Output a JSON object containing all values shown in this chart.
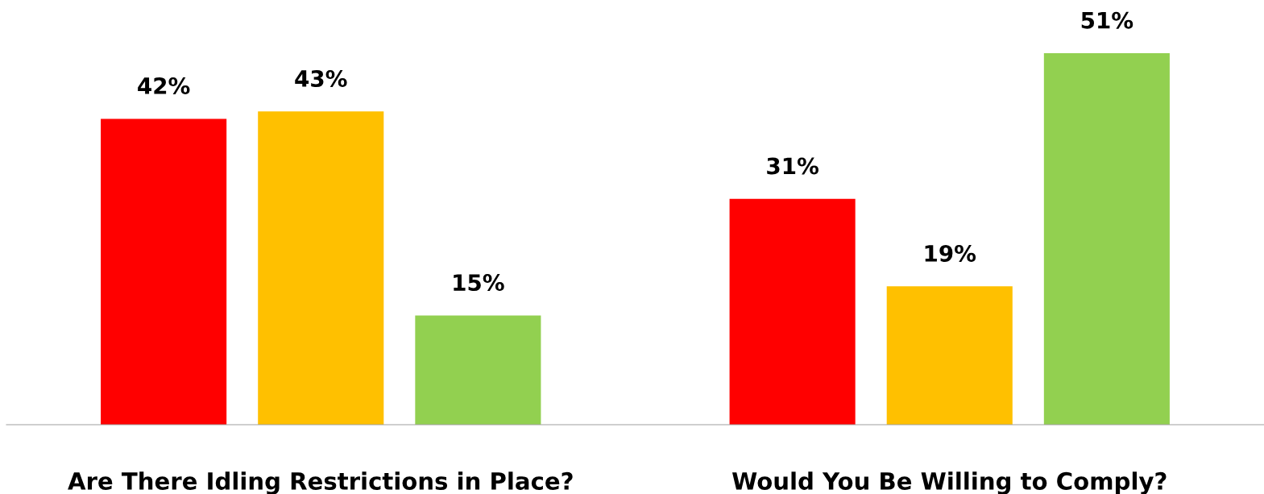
{
  "chart_data": {
    "type": "bar",
    "categories": [
      "Are There Idling Restrictions in Place?",
      "Would You Be Willing to Comply?"
    ],
    "series": [
      {
        "color": "#ff0000",
        "values": [
          42,
          31
        ],
        "value_labels": [
          "42%",
          "31%"
        ]
      },
      {
        "color": "#ffc000",
        "values": [
          43,
          19
        ],
        "value_labels": [
          "43%",
          "19%"
        ]
      },
      {
        "color": "#92d050",
        "values": [
          15,
          51
        ],
        "value_labels": [
          "15%",
          "51%"
        ]
      }
    ]
  }
}
